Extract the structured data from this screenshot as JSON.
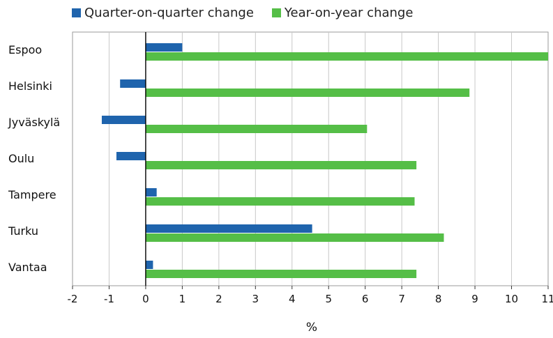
{
  "chart_data": {
    "type": "bar",
    "orientation": "horizontal",
    "categories": [
      "Espoo",
      "Helsinki",
      "Jyväskylä",
      "Oulu",
      "Tampere",
      "Turku",
      "Vantaa"
    ],
    "series": [
      {
        "name": "Quarter-on-quarter change",
        "color": "#1f64ad",
        "values": [
          1.0,
          -0.7,
          -1.2,
          -0.8,
          0.3,
          4.55,
          0.2
        ]
      },
      {
        "name": "Year-on-year change",
        "color": "#55be47",
        "values": [
          11.0,
          8.85,
          6.05,
          7.4,
          7.35,
          8.15,
          7.4
        ]
      }
    ],
    "xlabel": "%",
    "xlim": [
      -2,
      11
    ],
    "xticks": [
      "-2",
      "-1",
      "0",
      "1",
      "2",
      "3",
      "4",
      "5",
      "6",
      "7",
      "8",
      "9",
      "10",
      "11"
    ],
    "grid": true,
    "legend_position": "top"
  }
}
